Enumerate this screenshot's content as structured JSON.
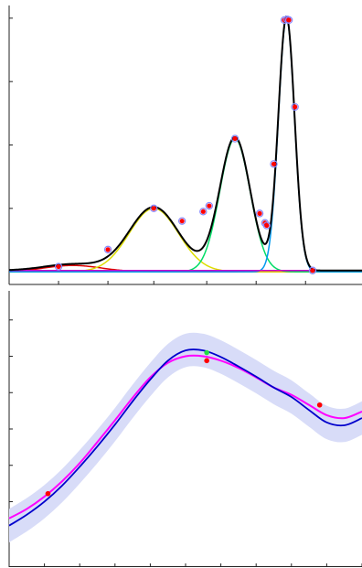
{
  "chart_data": [
    {
      "type": "line",
      "title": "",
      "xlabel": "",
      "ylabel": "",
      "xlim": [
        0,
        100
      ],
      "ylim": [
        -0.2,
        4.2
      ],
      "grid": false,
      "legend": "none",
      "x_ticks": [
        14,
        28,
        41,
        56,
        70,
        84
      ],
      "y_ticks": [
        0,
        1,
        2,
        3,
        4
      ],
      "colors": {
        "sum": "#000000",
        "peak_a": "#dd0000",
        "peak_b": "#dddd00",
        "peak_c": "#00dd66",
        "peak_d": "#0099ee",
        "baseline": "#cc00cc",
        "points": "#ff0000"
      },
      "series": [
        {
          "kind": "gaussian",
          "key": "peak_a",
          "amp": 0.1,
          "center": 18,
          "sigma": 8
        },
        {
          "kind": "gaussian",
          "key": "peak_b",
          "amp": 1.0,
          "center": 41,
          "sigma": 7
        },
        {
          "kind": "gaussian",
          "key": "peak_c",
          "amp": 2.1,
          "center": 64,
          "sigma": 4.3
        },
        {
          "kind": "gaussian",
          "key": "peak_d",
          "amp": 4.0,
          "center": 78.6,
          "sigma": 2.3
        },
        {
          "kind": "constant",
          "key": "baseline",
          "value": 0.02
        }
      ],
      "points": [
        {
          "x": 14,
          "y": 0.08
        },
        {
          "x": 28,
          "y": 0.35
        },
        {
          "x": 41,
          "y": 1.0
        },
        {
          "x": 49,
          "y": 0.8
        },
        {
          "x": 55,
          "y": 0.95
        },
        {
          "x": 56.7,
          "y": 1.04
        },
        {
          "x": 64,
          "y": 2.1
        },
        {
          "x": 71,
          "y": 0.92
        },
        {
          "x": 72.5,
          "y": 0.77
        },
        {
          "x": 73,
          "y": 0.73
        },
        {
          "x": 75,
          "y": 1.7
        },
        {
          "x": 78,
          "y": 3.97
        },
        {
          "x": 78.8,
          "y": 3.98
        },
        {
          "x": 79.3,
          "y": 3.97
        },
        {
          "x": 81,
          "y": 2.6
        },
        {
          "x": 86,
          "y": 0.02
        }
      ]
    },
    {
      "type": "line",
      "title": "",
      "xlabel": "",
      "ylabel": "",
      "xlim": [
        0,
        10
      ],
      "ylim": [
        -1.9,
        1.9
      ],
      "grid": false,
      "legend": "none",
      "x_ticks": [
        1,
        2,
        3,
        4,
        5,
        6,
        7,
        8,
        9,
        10
      ],
      "y_ticks": [
        -1,
        -0.5,
        0,
        0.5,
        1,
        1.5
      ],
      "colors": {
        "mean": "#0000cc",
        "target": "#ff00ff",
        "band": "#d8dcf8",
        "observed": "#ff0000",
        "highlight": "#22dd44"
      },
      "target_curve": {
        "x": [
          0,
          0.5,
          1,
          1.5,
          2,
          2.5,
          3,
          3.5,
          4,
          4.5,
          5,
          5.5,
          6,
          6.5,
          7,
          7.5,
          8,
          8.5,
          9,
          9.5,
          10
        ],
        "y": [
          -1.23,
          -1.1,
          -0.93,
          -0.72,
          -0.47,
          -0.18,
          0.12,
          0.43,
          0.71,
          0.91,
          1.0,
          1.0,
          0.94,
          0.84,
          0.71,
          0.57,
          0.47,
          0.33,
          0.19,
          0.15,
          0.24
        ]
      },
      "mean_curve": {
        "x": [
          0,
          0.5,
          1,
          1.5,
          2,
          2.5,
          3,
          3.5,
          4,
          4.5,
          5,
          5.5,
          6,
          6.5,
          7,
          7.5,
          8,
          8.5,
          9,
          9.5,
          10
        ],
        "y": [
          -1.33,
          -1.18,
          -1.0,
          -0.78,
          -0.52,
          -0.24,
          0.06,
          0.38,
          0.68,
          0.94,
          1.08,
          1.08,
          0.99,
          0.86,
          0.72,
          0.57,
          0.44,
          0.26,
          0.09,
          0.05,
          0.15
        ]
      },
      "band_halfwidth": 0.23,
      "observed_points": [
        {
          "x": 1.1,
          "y": -0.89
        },
        {
          "x": 5.6,
          "y": 0.94
        },
        {
          "x": 8.8,
          "y": 0.33
        }
      ],
      "highlight_point": {
        "x": 5.6,
        "y": 1.05
      }
    }
  ]
}
